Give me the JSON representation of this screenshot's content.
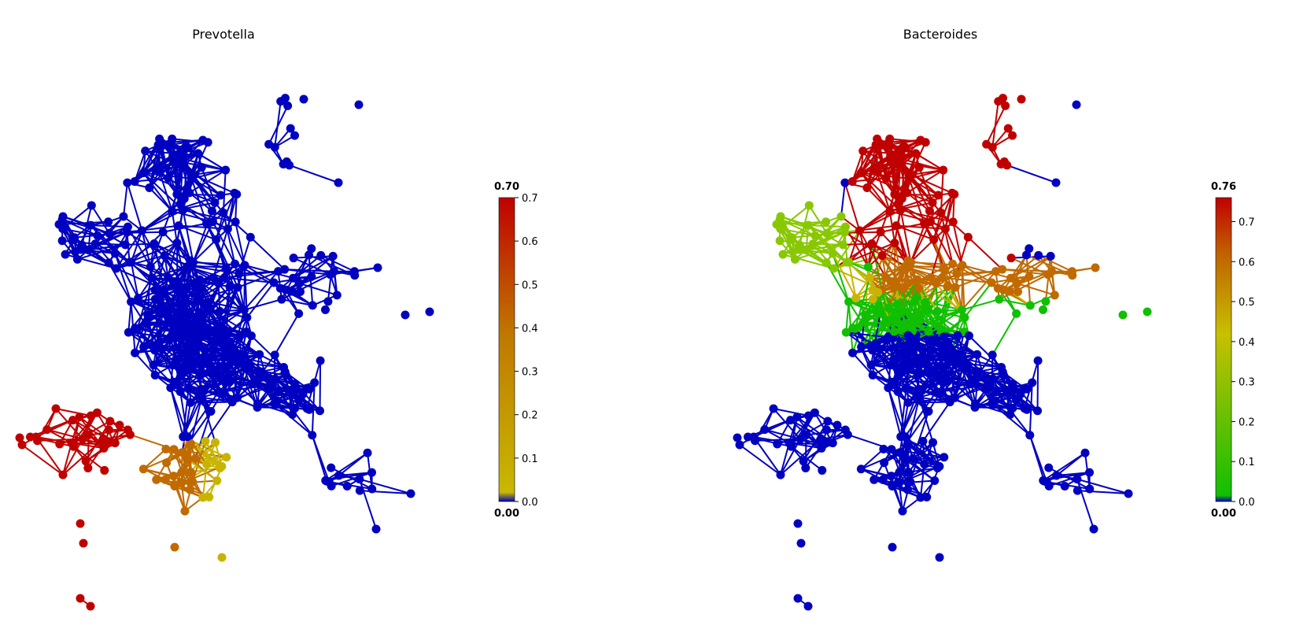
{
  "panels": [
    {
      "title": "Prevotella",
      "colorbar": {
        "max_label": "0.70",
        "min_label": "0.00",
        "ticks": [
          "0.0",
          "0.1",
          "0.2",
          "0.3",
          "0.4",
          "0.5",
          "0.6",
          "0.7"
        ],
        "gradient": [
          "#0000c0",
          "#c8b800",
          "#c07800",
          "#c00000"
        ]
      }
    },
    {
      "title": "Bacteroides",
      "colorbar": {
        "max_label": "0.76",
        "min_label": "0.00",
        "ticks": [
          "0.0",
          "0.1",
          "0.2",
          "0.3",
          "0.4",
          "0.5",
          "0.6",
          "0.7"
        ],
        "gradient": [
          "#0000c0",
          "#10c000",
          "#c8c000",
          "#c06000",
          "#c00000"
        ]
      }
    }
  ],
  "colors": {
    "background": "#0000c0",
    "red": "#c00000",
    "orange": "#c06a00",
    "yellow": "#c8b400",
    "lime": "#88c800",
    "green": "#10c000"
  }
}
